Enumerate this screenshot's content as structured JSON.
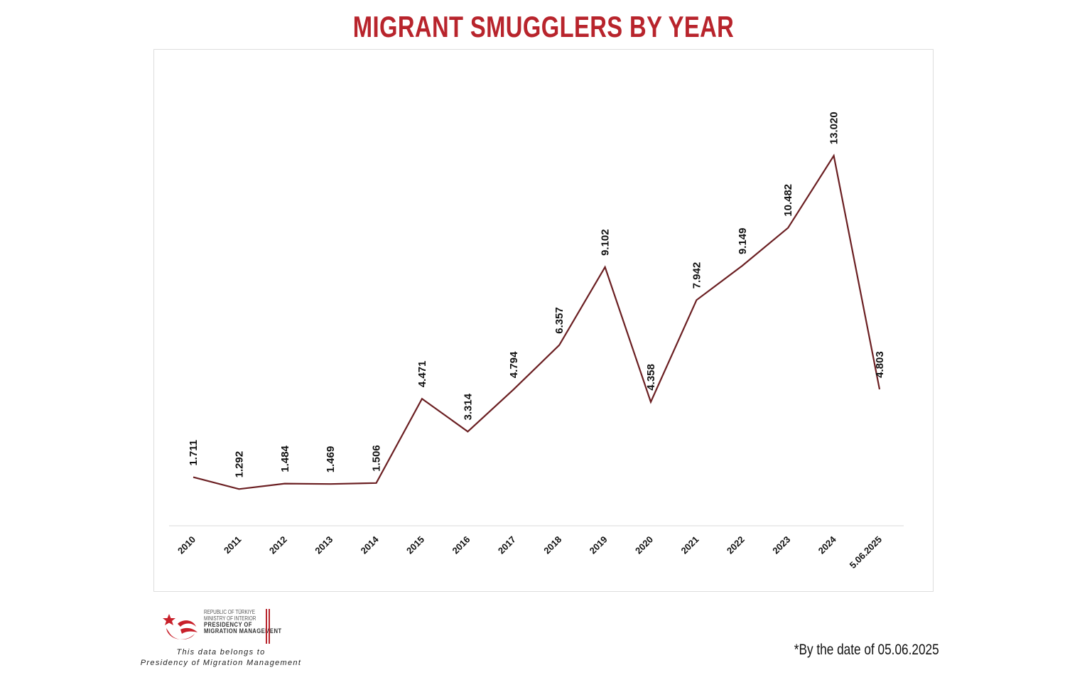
{
  "header": {
    "title": "MIGRANT SMUGGLERS BY YEAR"
  },
  "footer": {
    "logo_line1": "REPUBLIC OF TÜRKIYE",
    "logo_line2": "MINISTRY OF INTERIOR",
    "logo_line3": "PRESIDENCY OF",
    "logo_line4": "MIGRATION MANAGEMENT",
    "credit_line1": "This data belongs to",
    "credit_line2": "Presidency of Migration Management",
    "footnote": "*By the date of 05.06.2025"
  },
  "colors": {
    "title": "#b8242c",
    "line": "#6b1f22",
    "axis": "#d9d9d9"
  },
  "chart_data": {
    "type": "line",
    "title": "MIGRANT SMUGGLERS BY YEAR",
    "xlabel": "",
    "ylabel": "",
    "categories": [
      "2010",
      "2011",
      "2012",
      "2013",
      "2014",
      "2015",
      "2016",
      "2017",
      "2018",
      "2019",
      "2020",
      "2021",
      "2022",
      "2023",
      "2024",
      "5.06.2025"
    ],
    "values": [
      1711,
      1292,
      1484,
      1469,
      1506,
      4471,
      3314,
      4794,
      6357,
      9102,
      4358,
      7942,
      9149,
      10482,
      13020,
      4803
    ],
    "data_labels": [
      "1.711",
      "1.292",
      "1.484",
      "1.469",
      "1.506",
      "4.471",
      "3.314",
      "4.794",
      "6.357",
      "9.102",
      "4.358",
      "7.942",
      "9.149",
      "10.482",
      "13.020",
      "4.803"
    ],
    "ylim": [
      0,
      18000
    ],
    "grid": false,
    "legend": "none"
  }
}
